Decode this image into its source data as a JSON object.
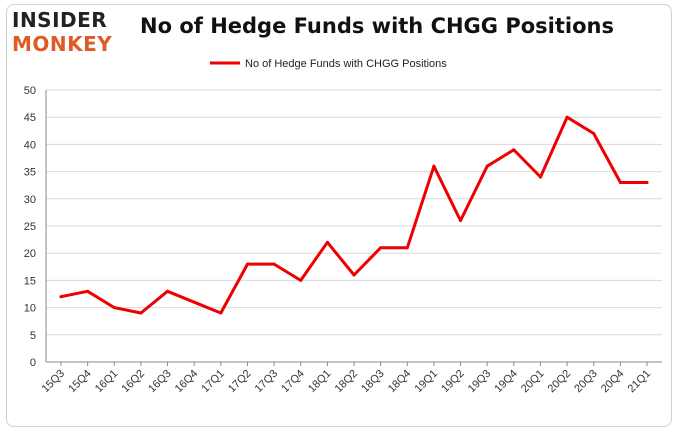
{
  "logo": {
    "line1": "INSIDER",
    "line2": "MONKEY"
  },
  "chart_data": {
    "type": "line",
    "title": "No of Hedge Funds with CHGG Positions",
    "xlabel": "",
    "ylabel": "",
    "categories": [
      "15Q3",
      "15Q4",
      "16Q1",
      "16Q2",
      "16Q3",
      "16Q4",
      "17Q1",
      "17Q2",
      "17Q3",
      "17Q4",
      "18Q1",
      "18Q2",
      "18Q3",
      "18Q4",
      "19Q1",
      "19Q2",
      "19Q3",
      "19Q4",
      "20Q1",
      "20Q2",
      "20Q3",
      "20Q4",
      "21Q1"
    ],
    "series": [
      {
        "name": "No of Hedge Funds with CHGG Positions",
        "color": "#ee0000",
        "values": [
          12,
          13,
          10,
          9,
          13,
          11,
          9,
          18,
          18,
          15,
          22,
          16,
          21,
          21,
          36,
          26,
          36,
          39,
          34,
          45,
          42,
          33,
          33
        ]
      }
    ],
    "ylim": [
      0,
      50
    ],
    "yticks": [
      0,
      5,
      10,
      15,
      20,
      25,
      30,
      35,
      40,
      45,
      50
    ],
    "grid": true,
    "legend": "top-center"
  }
}
